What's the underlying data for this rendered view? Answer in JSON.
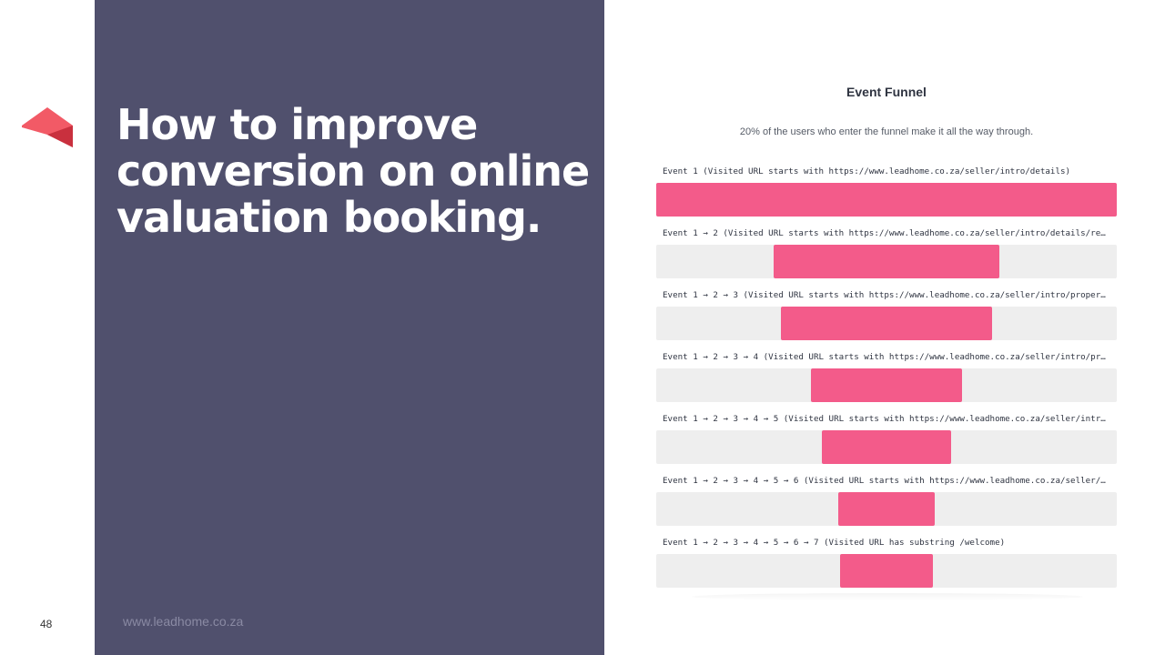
{
  "slide": {
    "page_number": "48",
    "headline": "How to improve conversion on online valuation booking.",
    "website": "www.leadhome.co.za",
    "colors": {
      "panel": "#50506d",
      "bar": "#f35b8a",
      "track": "#eeeeee",
      "logo": "#f0505e"
    },
    "logo_icon": "leadhome-roof-icon"
  },
  "chart_data": {
    "type": "bar",
    "title": "Event Funnel",
    "subtitle": "20% of the users who enter the funnel make it all the way through.",
    "categories": [
      "Event 1 (Visited URL starts with https://www.leadhome.co.za/seller/intro/details)",
      "Event 1 → 2 (Visited URL starts with https://www.leadhome.co.za/seller/intro/details/reg…",
      "Event 1 → 2 → 3 (Visited URL starts with https://www.leadhome.co.za/seller/intro/propert…",
      "Event 1 → 2 → 3 → 4 (Visited URL starts with https://www.leadhome.co.za/seller/intro/pro…",
      "Event 1 → 2 → 3 → 4 → 5 (Visited URL starts with https://www.leadhome.co.za/seller/intro…",
      "Event 1 → 2 → 3 → 4 → 5 → 6 (Visited URL starts with https://www.leadhome.co.za/seller/i…",
      "Event 1 → 2 → 3 → 4 → 5 → 6 → 7 (Visited URL has substring /welcome)"
    ],
    "values": [
      100,
      49,
      46,
      33,
      28,
      21,
      20
    ],
    "unit": "%",
    "orientation": "centered-horizontal",
    "ylim": [
      0,
      100
    ],
    "grid": false
  }
}
